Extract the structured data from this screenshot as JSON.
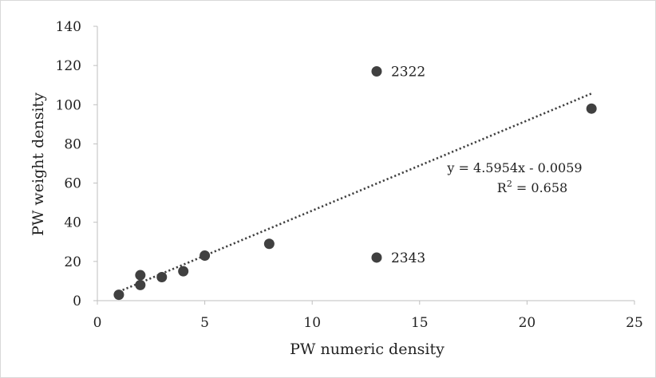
{
  "chart_data": {
    "type": "scatter",
    "title": "",
    "xlabel": "PW numeric density",
    "ylabel": "PW weight density",
    "xlim": [
      0,
      25
    ],
    "ylim": [
      0,
      140
    ],
    "x_ticks": [
      "0",
      "5",
      "10",
      "15",
      "20",
      "25"
    ],
    "y_ticks": [
      "0",
      "20",
      "40",
      "60",
      "80",
      "100",
      "120",
      "140"
    ],
    "grid": false,
    "points": [
      {
        "x": 1,
        "y": 3,
        "label": ""
      },
      {
        "x": 2,
        "y": 8,
        "label": ""
      },
      {
        "x": 2,
        "y": 13,
        "label": ""
      },
      {
        "x": 3,
        "y": 12,
        "label": ""
      },
      {
        "x": 4,
        "y": 15,
        "label": ""
      },
      {
        "x": 5,
        "y": 23,
        "label": ""
      },
      {
        "x": 8,
        "y": 29,
        "label": ""
      },
      {
        "x": 13,
        "y": 117,
        "label": "2322"
      },
      {
        "x": 13,
        "y": 22,
        "label": "2343"
      },
      {
        "x": 23,
        "y": 98,
        "label": ""
      }
    ],
    "trendline": {
      "type": "linear",
      "slope": 4.5954,
      "intercept": -0.0059,
      "x_range": [
        1,
        23
      ],
      "equation_text": "y = 4.5954x - 0.0059",
      "r2_prefix": "R",
      "r2_superscript": "2",
      "r2_value_text": " = 0.658"
    },
    "colors": {
      "marker": "#404040",
      "trendline": "#404040",
      "axis": "#bfbfbf"
    }
  }
}
